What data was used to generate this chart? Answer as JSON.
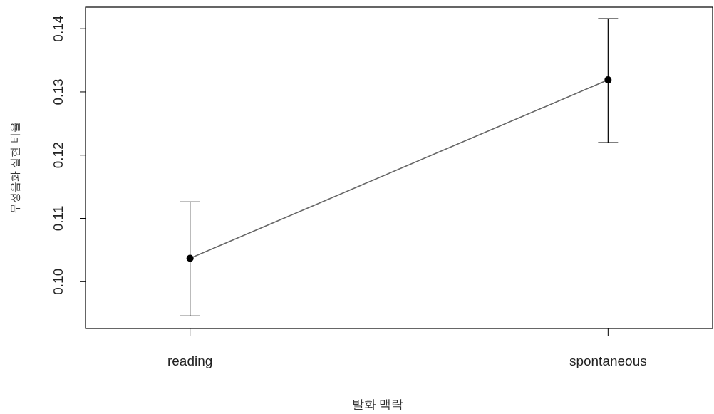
{
  "chart_data": {
    "type": "line",
    "xlabel": "발화 맥락",
    "ylabel": "무성음화 실현 비율",
    "categories": [
      "reading",
      "spontaneous"
    ],
    "series": [
      {
        "color": "#000000",
        "values": [
          0.1037,
          0.1319
        ],
        "errors": [
          [
            0.0946,
            0.1126
          ],
          [
            0.122,
            0.1416
          ]
        ]
      }
    ],
    "ylim": [
      0.0926,
      0.1434
    ],
    "yticks": [
      {
        "value": 0.1,
        "label": "0.10"
      },
      {
        "value": 0.11,
        "label": "0.11"
      },
      {
        "value": 0.12,
        "label": "0.12"
      },
      {
        "value": 0.13,
        "label": "0.13"
      },
      {
        "value": 0.14,
        "label": "0.14"
      }
    ],
    "marker": "circle",
    "grid": false
  }
}
